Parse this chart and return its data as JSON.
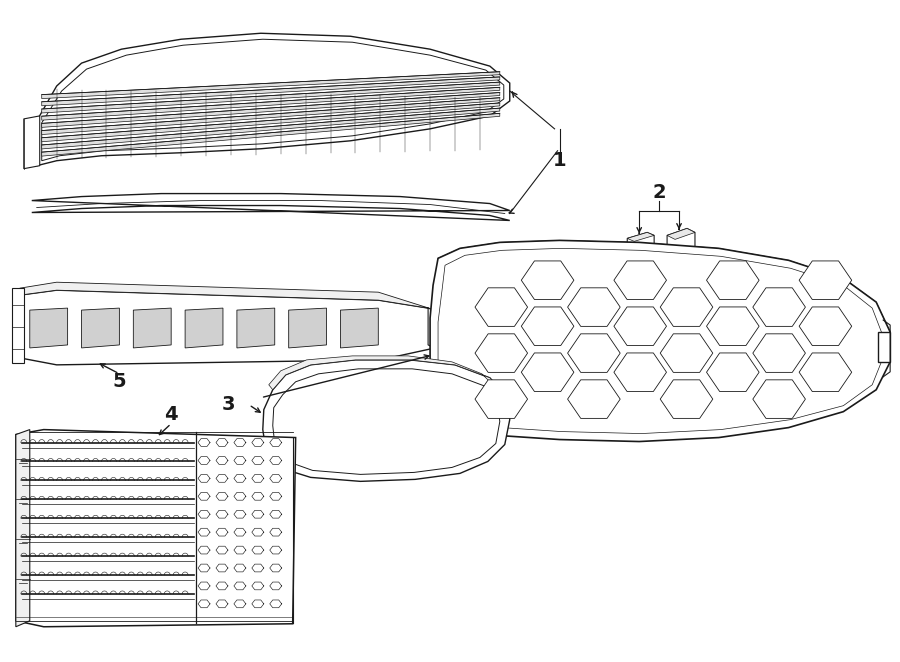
{
  "bg_color": "#ffffff",
  "line_color": "#1a1a1a",
  "line_width": 1.0,
  "fig_width": 9.0,
  "fig_height": 6.62,
  "label_fontsize": 14
}
